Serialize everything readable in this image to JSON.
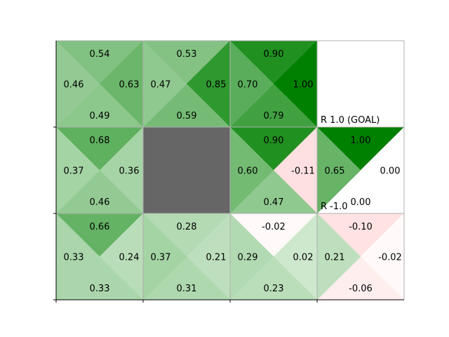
{
  "figure": {
    "rows": 3,
    "cols": 4,
    "wall_color": "#666666",
    "positive_color": "#008000",
    "negative_color": "#ffe0e0",
    "cells": [
      {
        "row": 0,
        "col": 0,
        "type": "state",
        "q": {
          "up": "0.54",
          "right": "0.63",
          "down": "0.49",
          "left": "0.46"
        }
      },
      {
        "row": 0,
        "col": 1,
        "type": "state",
        "q": {
          "up": "0.53",
          "right": "0.85",
          "down": "0.59",
          "left": "0.47"
        }
      },
      {
        "row": 0,
        "col": 2,
        "type": "state",
        "q": {
          "up": "0.90",
          "right": "1.00",
          "down": "0.79",
          "left": "0.70"
        }
      },
      {
        "row": 0,
        "col": 3,
        "type": "blank"
      },
      {
        "row": 1,
        "col": 0,
        "type": "state",
        "q": {
          "up": "0.68",
          "right": "0.36",
          "down": "0.46",
          "left": "0.37"
        }
      },
      {
        "row": 1,
        "col": 1,
        "type": "wall"
      },
      {
        "row": 1,
        "col": 2,
        "type": "state",
        "q": {
          "up": "0.90",
          "right": "-0.11",
          "down": "0.47",
          "left": "0.60"
        }
      },
      {
        "row": 1,
        "col": 3,
        "type": "state",
        "q": {
          "up": "1.00",
          "right": "0.00",
          "down": "0.00",
          "left": "0.65"
        },
        "white_triangles": [
          "right",
          "down"
        ]
      },
      {
        "row": 2,
        "col": 0,
        "type": "state",
        "q": {
          "up": "0.66",
          "right": "0.24",
          "down": "0.33",
          "left": "0.33"
        }
      },
      {
        "row": 2,
        "col": 1,
        "type": "state",
        "q": {
          "up": "0.28",
          "right": "0.21",
          "down": "0.31",
          "left": "0.37"
        }
      },
      {
        "row": 2,
        "col": 2,
        "type": "state",
        "q": {
          "up": "-0.02",
          "right": "0.02",
          "down": "0.23",
          "left": "0.29"
        }
      },
      {
        "row": 2,
        "col": 3,
        "type": "state",
        "q": {
          "up": "-0.10",
          "right": "-0.02",
          "down": "-0.06",
          "left": "0.21"
        }
      }
    ],
    "labels": [
      {
        "text": "R 1.0 (GOAL)",
        "row": 1,
        "col": 3,
        "anchor": "top-left"
      },
      {
        "text": "R -1.0",
        "row": 2,
        "col": 3,
        "anchor": "top-left"
      }
    ]
  }
}
